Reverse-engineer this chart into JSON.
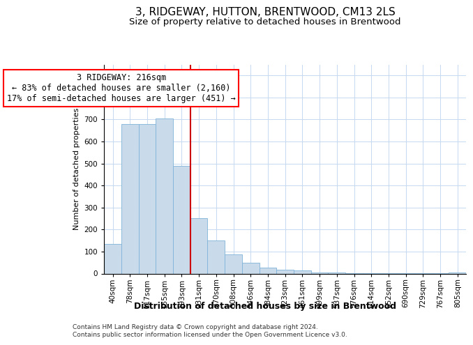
{
  "title": "3, RIDGEWAY, HUTTON, BRENTWOOD, CM13 2LS",
  "subtitle": "Size of property relative to detached houses in Brentwood",
  "xlabel": "Distribution of detached houses by size in Brentwood",
  "ylabel": "Number of detached properties",
  "bar_color": "#c9daea",
  "bar_edge_color": "#7fb3d9",
  "background_color": "#ffffff",
  "grid_color": "#c5d9f1",
  "annotation_line1": "3 RIDGEWAY: 216sqm",
  "annotation_line2": "← 83% of detached houses are smaller (2,160)",
  "annotation_line3": "17% of semi-detached houses are larger (451) →",
  "vline_color": "#cc0000",
  "footer1": "Contains HM Land Registry data © Crown copyright and database right 2024.",
  "footer2": "Contains public sector information licensed under the Open Government Licence v3.0.",
  "categories": [
    "40sqm",
    "78sqm",
    "117sqm",
    "155sqm",
    "193sqm",
    "231sqm",
    "270sqm",
    "308sqm",
    "346sqm",
    "384sqm",
    "423sqm",
    "461sqm",
    "499sqm",
    "537sqm",
    "576sqm",
    "614sqm",
    "652sqm",
    "690sqm",
    "729sqm",
    "767sqm",
    "805sqm"
  ],
  "values": [
    135,
    680,
    680,
    705,
    490,
    252,
    152,
    87,
    50,
    28,
    19,
    14,
    4,
    4,
    3,
    2,
    1,
    1,
    1,
    1,
    6
  ],
  "ylim": [
    0,
    950
  ],
  "yticks": [
    0,
    100,
    200,
    300,
    400,
    500,
    600,
    700,
    800,
    900
  ],
  "vline_bar_index": 5,
  "title_fontsize": 11,
  "subtitle_fontsize": 9.5,
  "xlabel_fontsize": 9,
  "ylabel_fontsize": 8,
  "tick_fontsize": 7.5,
  "annotation_fontsize": 8.5,
  "footer_fontsize": 6.5
}
